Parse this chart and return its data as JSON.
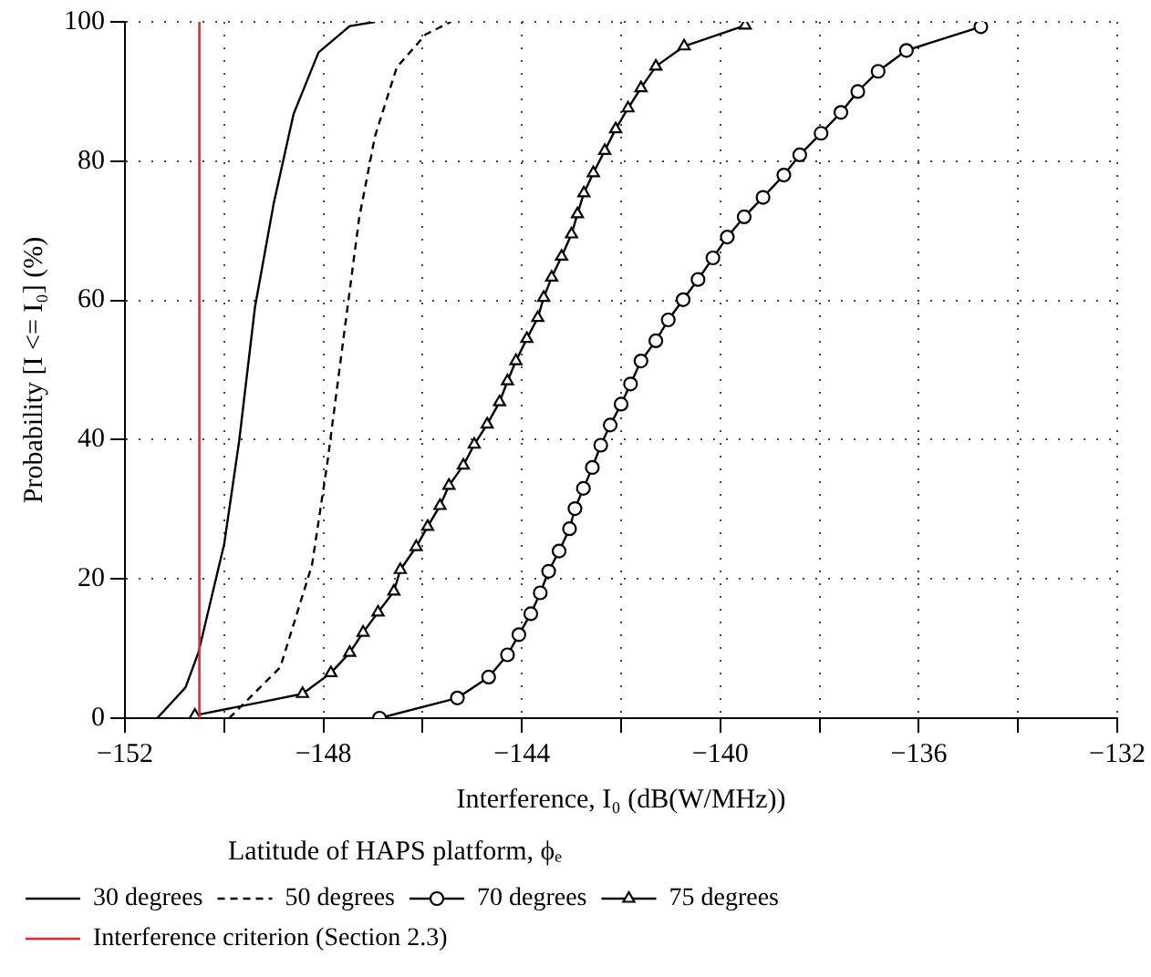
{
  "chart_data": {
    "type": "line",
    "xlabel": "Interference, I₀ (dB(W/MHz))",
    "ylabel": "Probability [I <= I₀] (%)",
    "legend_title": "Latitude of HAPS platform, ϕₑ",
    "legend": "bottom",
    "grid": true,
    "xlim": [
      -152,
      -132
    ],
    "ylim": [
      0,
      100
    ],
    "xticks": [
      {
        "value": -152,
        "label": "−152"
      },
      {
        "value": -150,
        "label": null
      },
      {
        "value": -148,
        "label": "−148"
      },
      {
        "value": -146,
        "label": null
      },
      {
        "value": -144,
        "label": "−144"
      },
      {
        "value": -142,
        "label": null
      },
      {
        "value": -140,
        "label": "−140"
      },
      {
        "value": -138,
        "label": null
      },
      {
        "value": -136,
        "label": "−136"
      },
      {
        "value": -134,
        "label": null
      },
      {
        "value": -132,
        "label": "−132"
      }
    ],
    "yticks": [
      0,
      20,
      40,
      60,
      80,
      100
    ],
    "series": [
      {
        "name": "30 degrees",
        "color": "#000000",
        "line_style": "solid",
        "marker": "none",
        "x": [
          -151.35,
          -150.78,
          -150.52,
          -150.0,
          -149.7,
          -149.38,
          -149.0,
          -148.6,
          -148.1,
          -147.47,
          -146.96
        ],
        "values": [
          0,
          4.4,
          9.4,
          25,
          39.7,
          59,
          74,
          86.8,
          95.6,
          99.4,
          100
        ]
      },
      {
        "name": "50 degrees",
        "color": "#000000",
        "line_style": "dashed",
        "marker": "none",
        "x": [
          -149.9,
          -148.87,
          -148.23,
          -147.92,
          -147.6,
          -147.28,
          -146.96,
          -146.52,
          -145.94,
          -145.43
        ],
        "values": [
          0,
          7.3,
          22,
          36.7,
          54.3,
          71.8,
          83.6,
          93.5,
          98.2,
          100
        ]
      },
      {
        "name": "70 degrees",
        "color": "#000000",
        "line_style": "solid",
        "marker": "circle",
        "x": [
          -146.87,
          -145.3,
          -144.67,
          -144.29,
          -144.06,
          -143.82,
          -143.63,
          -143.46,
          -143.25,
          -143.04,
          -142.93,
          -142.76,
          -142.58,
          -142.41,
          -142.22,
          -142.0,
          -141.81,
          -141.6,
          -141.3,
          -141.05,
          -140.75,
          -140.45,
          -140.15,
          -139.86,
          -139.52,
          -139.14,
          -138.72,
          -138.4,
          -137.97,
          -137.57,
          -137.23,
          -136.82,
          -136.25,
          -134.75
        ],
        "values": [
          0,
          2.9,
          5.9,
          9.1,
          12,
          15,
          18,
          21.1,
          24,
          27.2,
          30.1,
          33,
          36,
          39.2,
          42.1,
          45.1,
          48,
          51.3,
          54.2,
          57.2,
          60.1,
          63,
          66.1,
          69.1,
          72,
          74.8,
          78,
          80.9,
          84,
          87,
          90,
          92.9,
          95.9,
          99.3
        ]
      },
      {
        "name": "75 degrees",
        "color": "#000000",
        "line_style": "solid",
        "marker": "triangle",
        "x": [
          -150.59,
          -148.42,
          -147.85,
          -147.47,
          -147.2,
          -146.9,
          -146.58,
          -146.45,
          -146.13,
          -145.9,
          -145.65,
          -145.47,
          -145.18,
          -144.96,
          -144.7,
          -144.45,
          -144.29,
          -144.12,
          -143.9,
          -143.68,
          -143.56,
          -143.4,
          -143.2,
          -143.0,
          -142.88,
          -142.75,
          -142.56,
          -142.33,
          -142.11,
          -141.86,
          -141.6,
          -141.3,
          -140.73,
          -139.5
        ],
        "values": [
          0.4,
          3.5,
          6.5,
          9.4,
          12.3,
          15.2,
          18.2,
          21.3,
          24.6,
          27.5,
          30.5,
          33.4,
          36.3,
          39.3,
          42.2,
          45.4,
          48.4,
          51.3,
          54.5,
          57.5,
          60.4,
          63.3,
          66.3,
          69.5,
          72.4,
          75.4,
          78.3,
          81.5,
          84.6,
          87.6,
          90.5,
          93.6,
          96.5,
          99.5
        ]
      }
    ],
    "ref_lines": [
      {
        "axis": "x",
        "value": -150.5,
        "label": "Interference criterion (Section 2.3)",
        "color": "#e8262d"
      }
    ]
  }
}
